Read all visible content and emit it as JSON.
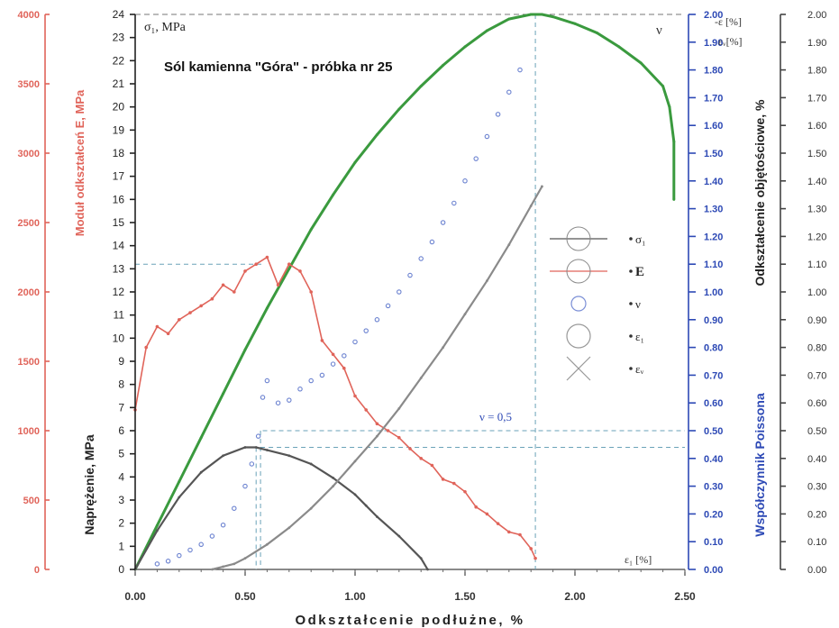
{
  "chart_data": {
    "type": "scatter",
    "title": "Sól kamienna \"Góra\" - próbka nr 25",
    "xlabel": "Odkształcenie podłużne, %",
    "xlim": [
      0,
      2.5
    ],
    "x_ticks": [
      "0.00",
      "0.50",
      "1.00",
      "1.50",
      "2.00",
      "2.50"
    ],
    "axes": {
      "modulus": {
        "label": "Moduł odkształceń E, MPa",
        "unit_tag": "E",
        "ylim": [
          0,
          4000
        ],
        "ticks": [
          "0",
          "500",
          "1000",
          "1500",
          "2000",
          "2500",
          "3000",
          "3500",
          "4000"
        ],
        "color": "#e0645a"
      },
      "stress": {
        "label": "Naprężenie, MPa",
        "corner_label": "σ₁, MPa",
        "ylim": [
          0,
          24
        ],
        "ticks": [
          "0",
          "1",
          "2",
          "3",
          "4",
          "5",
          "6",
          "7",
          "8",
          "9",
          "10",
          "11",
          "12",
          "13",
          "14",
          "15",
          "16",
          "17",
          "18",
          "19",
          "20",
          "21",
          "22",
          "23",
          "24"
        ],
        "color": "#222222"
      },
      "poisson": {
        "label": "Współczynnik Poissona",
        "ylim": [
          0,
          2
        ],
        "ticks": [
          "0.00",
          "0.10",
          "0.20",
          "0.30",
          "0.40",
          "0.50",
          "0.60",
          "0.70",
          "0.80",
          "0.90",
          "1.00",
          "1.10",
          "1.20",
          "1.30",
          "1.40",
          "1.50",
          "1.60",
          "1.70",
          "1.80",
          "1.90",
          "2.00"
        ],
        "color": "#2d49b5"
      },
      "volumetric": {
        "label": "Odkształcenie objętościowe, %",
        "ylim": [
          0,
          2
        ],
        "ticks": [
          "0.00",
          "0.10",
          "0.20",
          "0.30",
          "0.40",
          "0.50",
          "0.60",
          "0.70",
          "0.80",
          "0.90",
          "1.00",
          "1.10",
          "1.20",
          "1.30",
          "1.40",
          "1.50",
          "1.60",
          "1.70",
          "1.80",
          "1.90",
          "2.00"
        ],
        "color": "#444444"
      }
    },
    "series": [
      {
        "name": "σ₁",
        "axis": "stress",
        "color": "#3a9a3e",
        "x": [
          0,
          0.1,
          0.2,
          0.3,
          0.4,
          0.5,
          0.6,
          0.7,
          0.8,
          0.9,
          1.0,
          1.1,
          1.2,
          1.3,
          1.4,
          1.5,
          1.6,
          1.7,
          1.8,
          1.85,
          1.9,
          2.0,
          2.1,
          2.2,
          2.3,
          2.4,
          2.43,
          2.45,
          2.45
        ],
        "y": [
          0,
          1.9,
          3.8,
          5.7,
          7.6,
          9.5,
          11.3,
          13.0,
          14.7,
          16.2,
          17.6,
          18.8,
          19.9,
          20.9,
          21.8,
          22.6,
          23.3,
          23.8,
          24.0,
          24.0,
          23.9,
          23.6,
          23.2,
          22.6,
          21.9,
          20.9,
          20.0,
          18.5,
          16.0
        ]
      },
      {
        "name": "E",
        "axis": "modulus",
        "color": "#e0645a",
        "x": [
          0,
          0.05,
          0.1,
          0.15,
          0.2,
          0.25,
          0.3,
          0.35,
          0.4,
          0.45,
          0.5,
          0.55,
          0.6,
          0.65,
          0.7,
          0.75,
          0.8,
          0.85,
          0.9,
          0.95,
          1.0,
          1.05,
          1.1,
          1.15,
          1.2,
          1.25,
          1.3,
          1.35,
          1.4,
          1.45,
          1.5,
          1.55,
          1.6,
          1.65,
          1.7,
          1.75,
          1.8,
          1.82
        ],
        "y": [
          1150,
          1600,
          1750,
          1700,
          1800,
          1850,
          1900,
          1950,
          2050,
          2000,
          2150,
          2200,
          2250,
          2050,
          2200,
          2150,
          2000,
          1650,
          1550,
          1450,
          1250,
          1150,
          1050,
          1000,
          950,
          870,
          800,
          750,
          650,
          620,
          560,
          450,
          400,
          330,
          270,
          250,
          150,
          80
        ]
      },
      {
        "name": "ν",
        "axis": "poisson",
        "color": "#6b82d0",
        "x": [
          0.1,
          0.15,
          0.2,
          0.25,
          0.3,
          0.35,
          0.4,
          0.45,
          0.5,
          0.53,
          0.56,
          0.58,
          0.6,
          0.65,
          0.7,
          0.75,
          0.8,
          0.85,
          0.9,
          0.95,
          1.0,
          1.05,
          1.1,
          1.15,
          1.2,
          1.25,
          1.3,
          1.35,
          1.4,
          1.45,
          1.5,
          1.55,
          1.6,
          1.65,
          1.7,
          1.75
        ],
        "y": [
          0.02,
          0.03,
          0.05,
          0.07,
          0.09,
          0.12,
          0.16,
          0.22,
          0.3,
          0.38,
          0.48,
          0.62,
          0.68,
          0.6,
          0.61,
          0.65,
          0.68,
          0.7,
          0.74,
          0.77,
          0.82,
          0.86,
          0.9,
          0.95,
          1.0,
          1.06,
          1.12,
          1.18,
          1.25,
          1.32,
          1.4,
          1.48,
          1.56,
          1.64,
          1.72,
          1.8
        ]
      },
      {
        "name": "ε₁",
        "axis": "volumetric",
        "color": "#555555",
        "x": [
          0,
          0.1,
          0.2,
          0.3,
          0.4,
          0.5,
          0.55,
          0.6,
          0.7,
          0.8,
          0.9,
          1.0,
          1.05,
          1.1,
          1.2,
          1.3,
          1.33
        ],
        "y": [
          0,
          0.14,
          0.26,
          0.35,
          0.41,
          0.44,
          0.44,
          0.43,
          0.41,
          0.38,
          0.33,
          0.27,
          0.23,
          0.19,
          0.12,
          0.04,
          0
        ]
      },
      {
        "name": "εᵥ",
        "axis": "volumetric",
        "color": "#8a8a8a",
        "x": [
          0.35,
          0.4,
          0.45,
          0.5,
          0.6,
          0.7,
          0.8,
          0.9,
          1.0,
          1.1,
          1.2,
          1.3,
          1.4,
          1.5,
          1.6,
          1.7,
          1.8,
          1.85
        ],
        "y": [
          0,
          0.01,
          0.02,
          0.04,
          0.09,
          0.15,
          0.22,
          0.3,
          0.39,
          0.48,
          0.58,
          0.69,
          0.8,
          0.92,
          1.04,
          1.17,
          1.31,
          1.38
        ]
      }
    ],
    "legend_symbols": {
      "σ₁": "circle-line",
      "E": "circle-line",
      "ν": "small-circle",
      "ε₁": "circle",
      "εᵥ": "cross"
    },
    "legend_entries": [
      "σ₁",
      "E",
      "ν",
      "ε₁",
      "εᵥ"
    ],
    "legend_position": "right",
    "annotations": {
      "poisson_ref": "ν = 0,5",
      "nu_tag": "ν",
      "eps_l_tag": "ε₁ [%]",
      "eps_v_tag_top": "-ε [%]",
      "eps_v_tag": "εᵥ[%]"
    },
    "reference_lines": {
      "stress_peak": 24,
      "strain_peak": 1.82,
      "modulus_peak": 2200,
      "poisson_ref": 0.5,
      "volumetric_ref": 0.44,
      "strain_ref_a": 0.55,
      "strain_ref_b": 0.57
    },
    "grid": false
  }
}
